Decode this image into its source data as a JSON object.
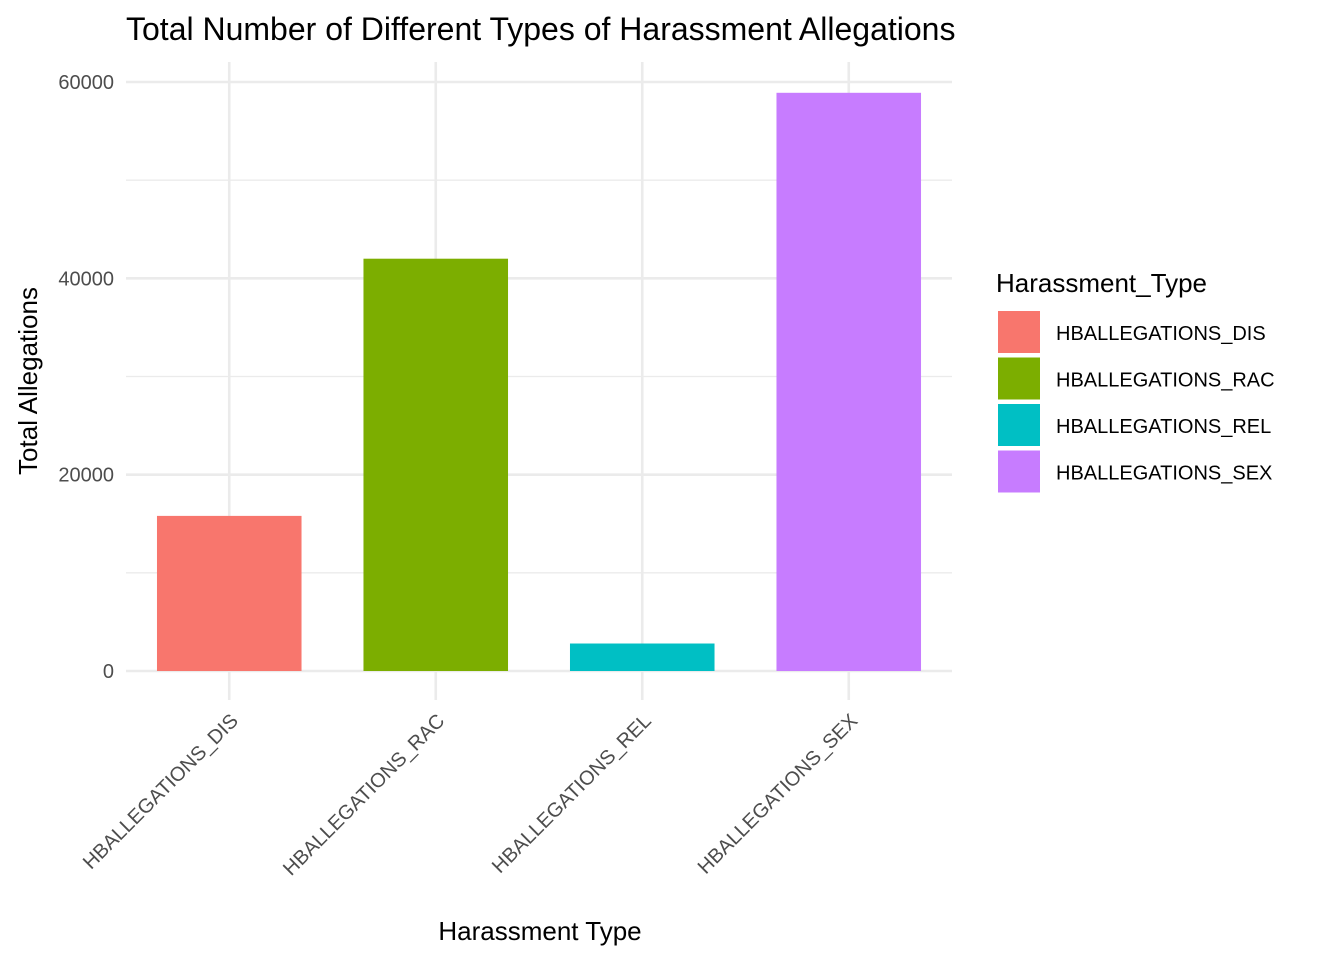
{
  "chart_data": {
    "type": "bar",
    "title": "Total Number of Different Types of Harassment Allegations",
    "xlabel": "Harassment Type",
    "ylabel": "Total Allegations",
    "categories": [
      "HBALLEGATIONS_DIS",
      "HBALLEGATIONS_RAC",
      "HBALLEGATIONS_REL",
      "HBALLEGATIONS_SEX"
    ],
    "values": [
      15800,
      42000,
      2800,
      58900
    ],
    "colors": [
      "#F8766D",
      "#7CAE00",
      "#00BFC4",
      "#C77CFF"
    ],
    "ylim": [
      0,
      61000
    ],
    "yticks": [
      0,
      20000,
      40000,
      60000
    ],
    "ytick_labels": [
      "0",
      "20000",
      "40000",
      "60000"
    ],
    "grid": true,
    "legend": {
      "title": "Harassment_Type",
      "position": "right",
      "entries": [
        "HBALLEGATIONS_DIS",
        "HBALLEGATIONS_RAC",
        "HBALLEGATIONS_REL",
        "HBALLEGATIONS_SEX"
      ]
    }
  }
}
